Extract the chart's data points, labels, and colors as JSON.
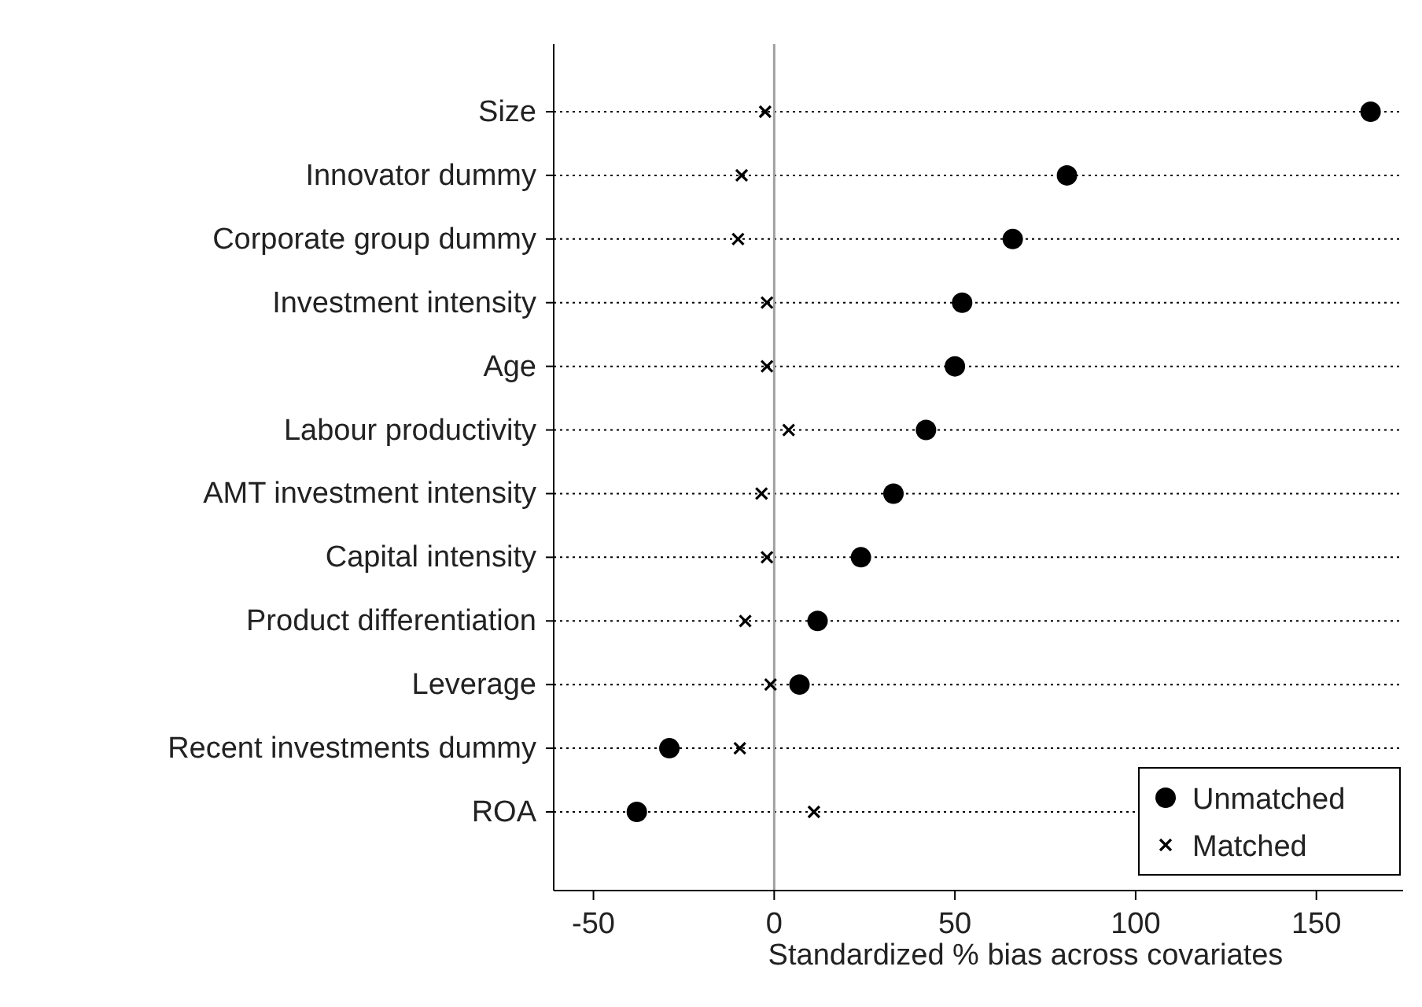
{
  "chart_data": {
    "type": "scatter",
    "orientation": "horizontal",
    "xlabel": "Standardized % bias across covariates",
    "categories": [
      "Size",
      "Innovator dummy",
      "Corporate group dummy",
      "Investment intensity",
      "Age",
      "Labour productivity",
      "AMT investment intensity",
      "Capital intensity",
      "Product differentiation",
      "Leverage",
      "Recent investments dummy",
      "ROA"
    ],
    "series": [
      {
        "name": "Unmatched",
        "color": "#000000",
        "marker": "circle",
        "values": [
          165,
          81,
          66,
          52,
          50,
          42,
          33,
          24,
          12,
          7,
          -29,
          -38
        ]
      },
      {
        "name": "Matched",
        "color": "#000000",
        "marker": "cross",
        "values": [
          -2.5,
          -9,
          -10,
          -2,
          -2,
          4,
          -3.5,
          -2,
          -8,
          -1,
          -9.5,
          11
        ]
      }
    ],
    "xlim": [
      -61,
      174
    ],
    "xticks": [
      -50,
      0,
      50,
      100,
      150
    ],
    "grid": "y",
    "legend": "bottom right",
    "ref_lines": [
      {
        "axis": "x",
        "value": 0,
        "color": "#a0a0a0"
      }
    ]
  }
}
